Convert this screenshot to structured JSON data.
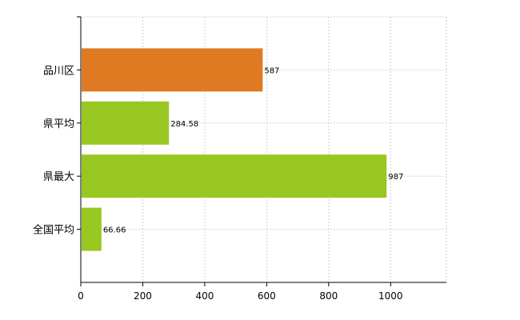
{
  "chart_data": {
    "type": "bar",
    "orientation": "horizontal",
    "categories": [
      "品川区",
      "県平均",
      "県最大",
      "全国平均"
    ],
    "values": [
      587,
      284.58,
      987,
      66.66
    ],
    "value_labels": [
      "587",
      "284.58",
      "987",
      "66.66"
    ],
    "bar_colors": [
      "#e07a22",
      "#99c722",
      "#99c722",
      "#99c722"
    ],
    "xlim": [
      0,
      1180
    ],
    "xticks": [
      0,
      200,
      400,
      600,
      800,
      1000
    ],
    "grid": true,
    "grid_style": "dotted",
    "legend": "none",
    "title": "",
    "xlabel": "",
    "ylabel": ""
  }
}
